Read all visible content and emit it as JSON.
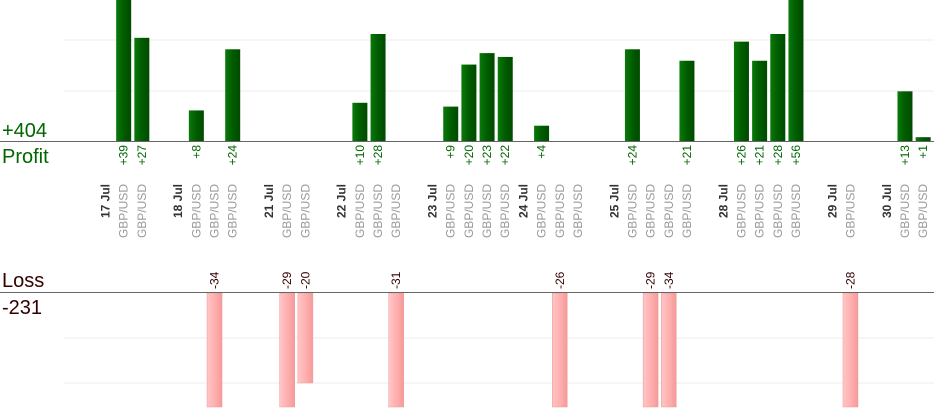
{
  "chart_data": {
    "type": "bar",
    "profit": {
      "total_label": "+404",
      "label": "Profit",
      "color": "#006600",
      "ylim": [
        0,
        28
      ]
    },
    "loss": {
      "label": "Loss",
      "total_label": "-231",
      "color": "#ffb0b0",
      "ylim": [
        0,
        26
      ]
    },
    "slot_count": 46,
    "date_groups": [
      {
        "date": "17 Jul",
        "slot": 0
      },
      {
        "date": "18 Jul",
        "slot": 4
      },
      {
        "date": "21 Jul",
        "slot": 9
      },
      {
        "date": "22 Jul",
        "slot": 13
      },
      {
        "date": "23 Jul",
        "slot": 18
      },
      {
        "date": "24 Jul",
        "slot": 23
      },
      {
        "date": "25 Jul",
        "slot": 28
      },
      {
        "date": "28 Jul",
        "slot": 34
      },
      {
        "date": "29 Jul",
        "slot": 40
      },
      {
        "date": "30 Jul",
        "slot": 43
      }
    ],
    "trades": [
      {
        "slot": 1,
        "symbol": "GBP/USD",
        "value": 39
      },
      {
        "slot": 2,
        "symbol": "GBP/USD",
        "value": 27
      },
      {
        "slot": 5,
        "symbol": "GBP/USD",
        "value": 8
      },
      {
        "slot": 6,
        "symbol": "GBP/USD",
        "value": -34
      },
      {
        "slot": 7,
        "symbol": "GBP/USD",
        "value": 24
      },
      {
        "slot": 10,
        "symbol": "GBP/USD",
        "value": -29
      },
      {
        "slot": 11,
        "symbol": "GBP/USD",
        "value": -20
      },
      {
        "slot": 14,
        "symbol": "GBP/USD",
        "value": 10
      },
      {
        "slot": 15,
        "symbol": "GBP/USD",
        "value": 28
      },
      {
        "slot": 16,
        "symbol": "GBP/USD",
        "value": -31
      },
      {
        "slot": 19,
        "symbol": "GBP/USD",
        "value": 9
      },
      {
        "slot": 20,
        "symbol": "GBP/USD",
        "value": 20
      },
      {
        "slot": 21,
        "symbol": "GBP/USD",
        "value": 23
      },
      {
        "slot": 22,
        "symbol": "GBP/USD",
        "value": 22
      },
      {
        "slot": 24,
        "symbol": "GBP/USD",
        "value": 4
      },
      {
        "slot": 25,
        "symbol": "GBP/USD",
        "value": -26
      },
      {
        "slot": 26,
        "symbol": "GBP/USD",
        "value": null
      },
      {
        "slot": 29,
        "symbol": "GBP/USD",
        "value": 24
      },
      {
        "slot": 30,
        "symbol": "GBP/USD",
        "value": -29
      },
      {
        "slot": 31,
        "symbol": "GBP/USD",
        "value": -34
      },
      {
        "slot": 32,
        "symbol": "GBP/USD",
        "value": 21
      },
      {
        "slot": 35,
        "symbol": "GBP/USD",
        "value": 26
      },
      {
        "slot": 36,
        "symbol": "GBP/USD",
        "value": 21
      },
      {
        "slot": 37,
        "symbol": "GBP/USD",
        "value": 28
      },
      {
        "slot": 38,
        "symbol": "GBP/USD",
        "value": 56
      },
      {
        "slot": 41,
        "symbol": "GBP/USD",
        "value": -28
      },
      {
        "slot": 44,
        "symbol": "GBP/USD",
        "value": 13
      },
      {
        "slot": 45,
        "symbol": "GBP/USD",
        "value": 1
      }
    ]
  }
}
